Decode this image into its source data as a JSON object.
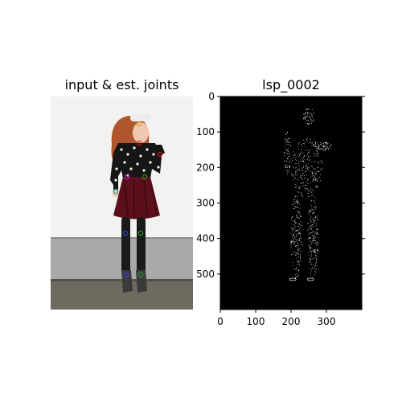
{
  "left_panel": {
    "title": "input & est. joints",
    "joint_colors": [
      "#d01818",
      "#2a9a2a",
      "#3040d0",
      "#c020c0",
      "#20a0a0",
      "#d0a020"
    ]
  },
  "chart_data": {
    "type": "image",
    "title": "lsp_0002",
    "xlabel": "",
    "ylabel": "",
    "xlim": [
      0,
      400
    ],
    "ylim": [
      600,
      0
    ],
    "xticks": [
      0,
      100,
      200,
      300
    ],
    "yticks": [
      0,
      100,
      200,
      300,
      400,
      500
    ],
    "mesh_color": "#ffffff",
    "background": "#000000"
  }
}
